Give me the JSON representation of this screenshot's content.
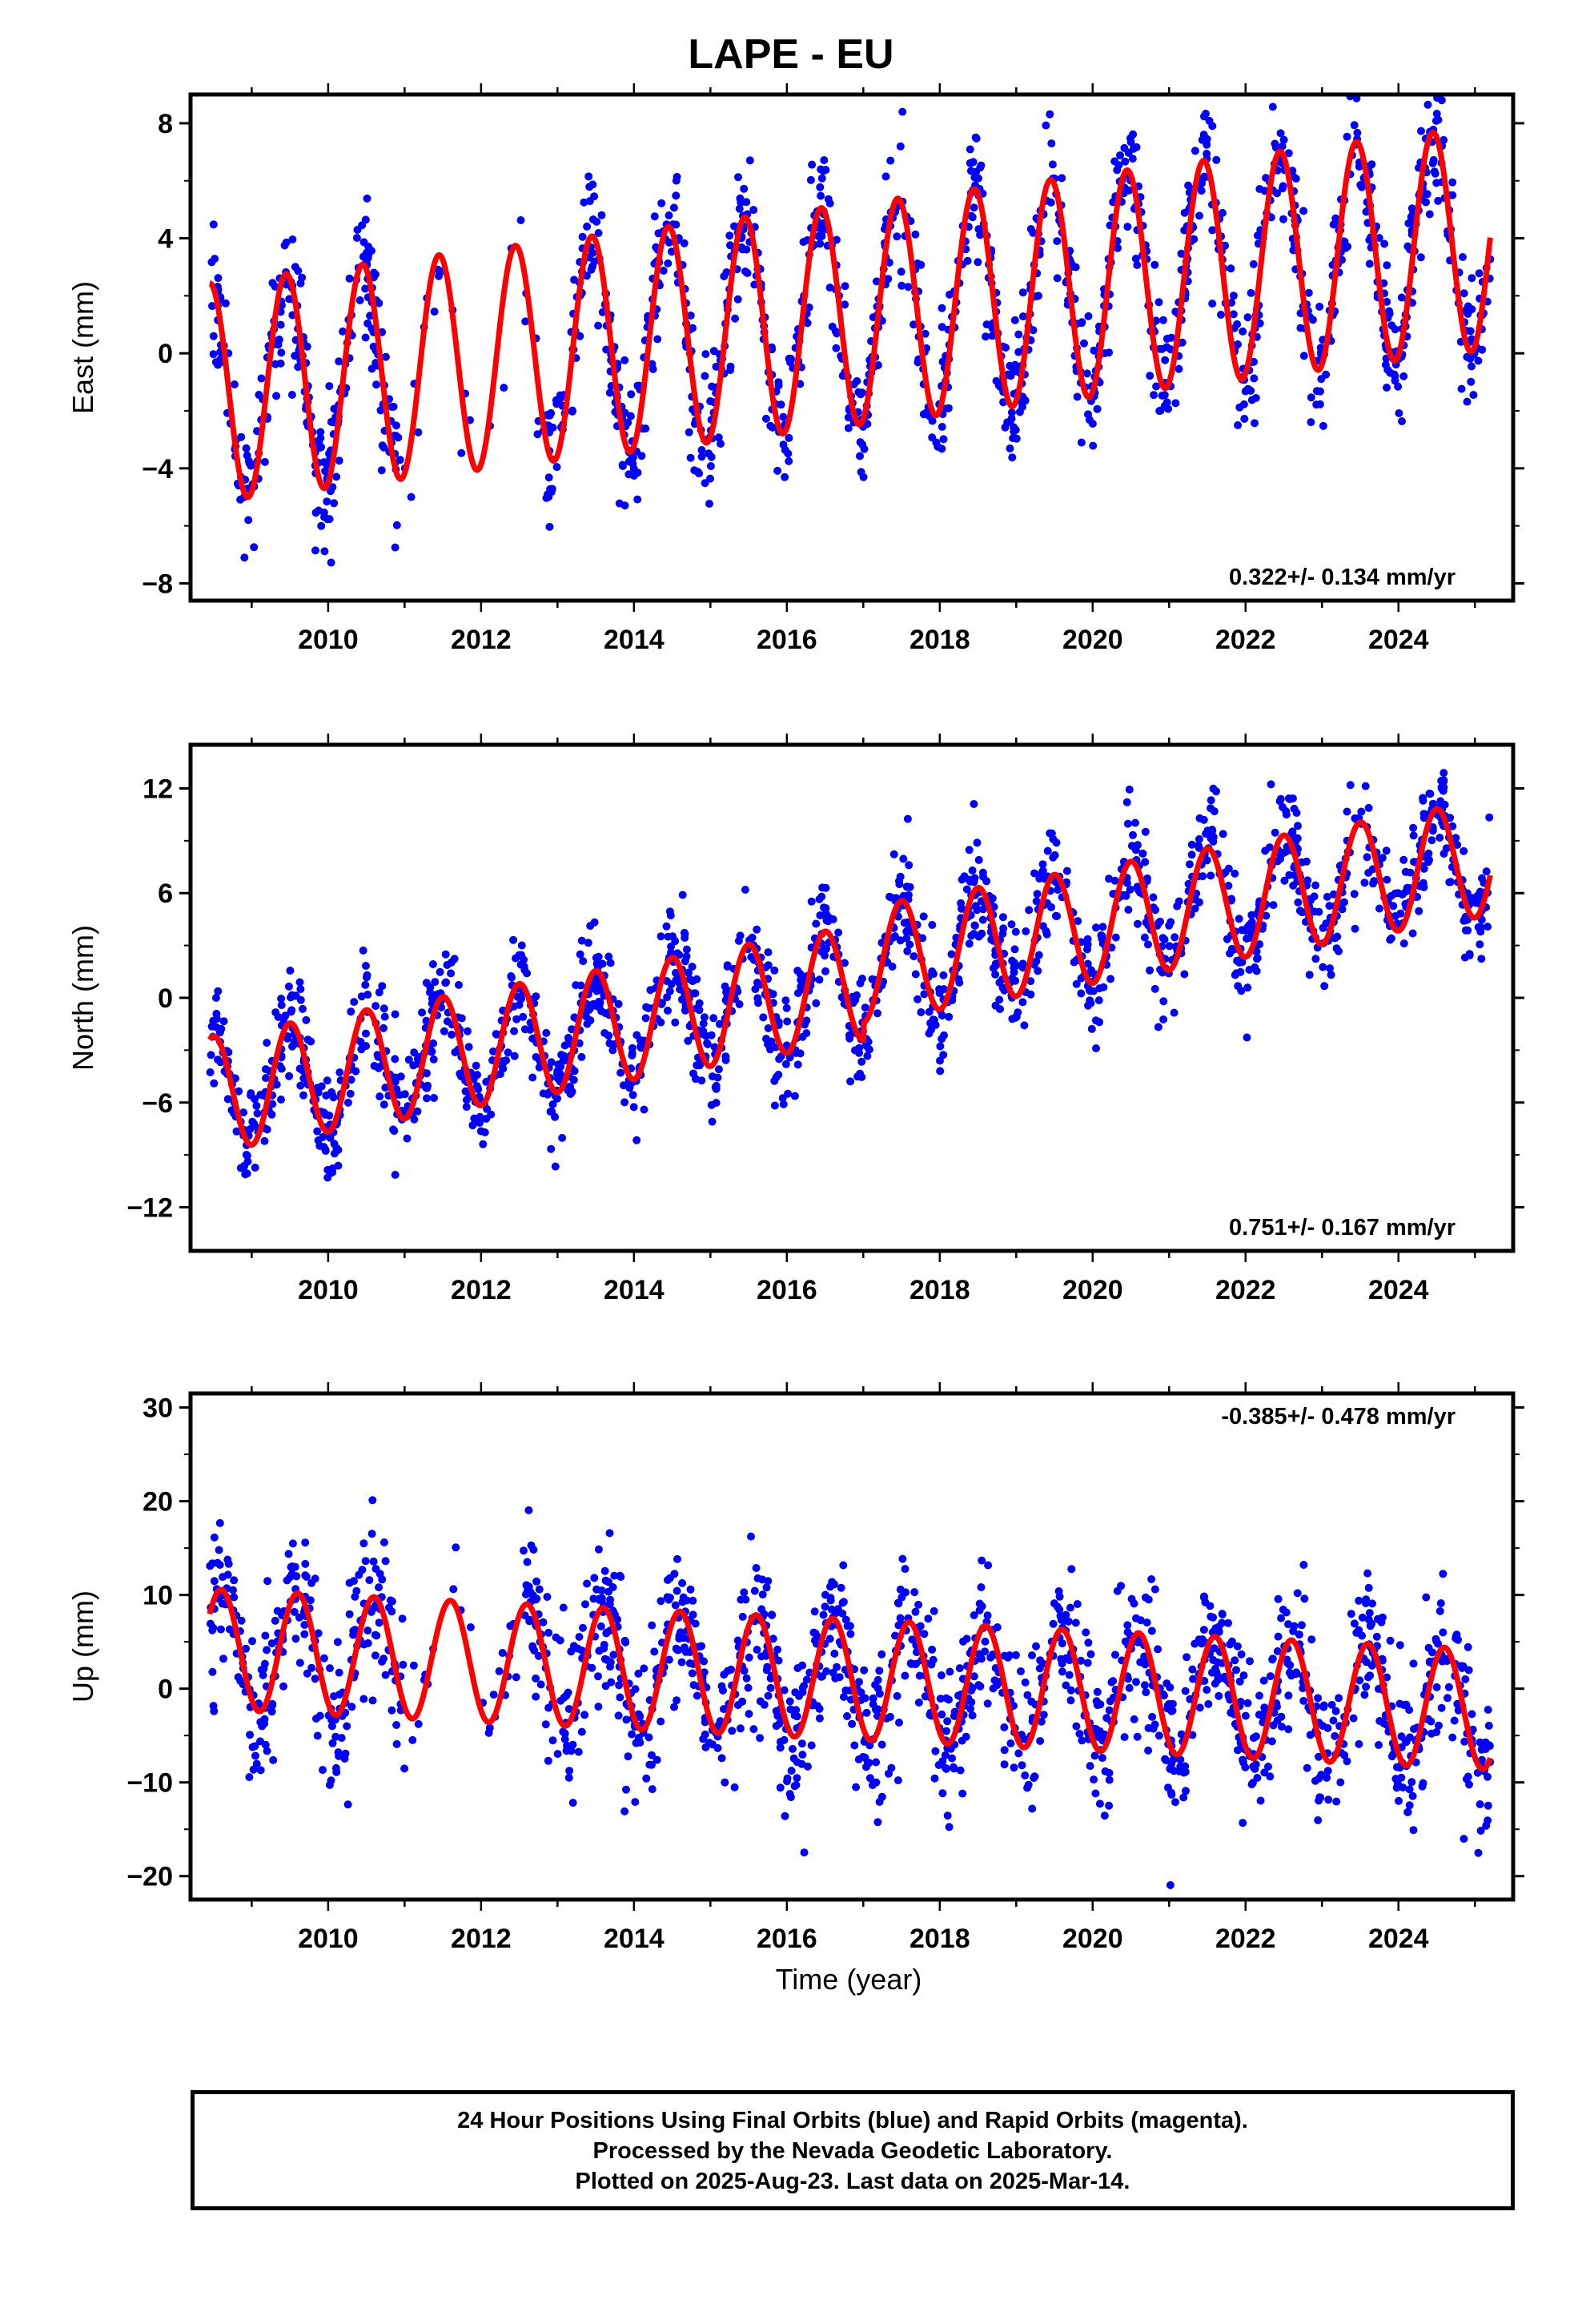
{
  "title": "LAPE - EU",
  "xlabel": "Time (year)",
  "colors": {
    "data": "#0000ff",
    "fit": "#ff0000",
    "frame": "#000000"
  },
  "footer": {
    "line1": "24 Hour Positions Using Final Orbits (blue) and Rapid Orbits (magenta).",
    "line2": "Processed by the Nevada Geodetic Laboratory.",
    "line3": "Plotted on 2025-Aug-23. Last data on 2025-Mar-14."
  },
  "chart_data": [
    {
      "type": "scatter",
      "id": "east",
      "ylabel": "East (mm)",
      "rate_text": "0.322+/- 0.134 mm/yr",
      "rate_position": "bottom-right",
      "xlim": [
        2008.2,
        2025.5
      ],
      "ylim": [
        -8.6,
        9.0
      ],
      "xticks": [
        2010,
        2012,
        2014,
        2016,
        2018,
        2020,
        2022,
        2024
      ],
      "yticks": [
        -8,
        -4,
        0,
        4,
        8
      ],
      "ytick_labels": [
        "−8",
        "−4",
        "0",
        "4",
        "8"
      ],
      "data_range": [
        2008.45,
        2025.2
      ],
      "fit": {
        "offset_2008_5": -1.35,
        "rate_mm_per_yr": 0.322,
        "annual_amplitude_start": 3.8,
        "annual_amplitude_end": 3.9,
        "annual_peak_fraction": 0.45,
        "gaps": [
          [
            2010.95,
            2012.85
          ]
        ]
      },
      "series": [
        {
          "values_sampled": [
            [
              2008.5,
              1.0
            ],
            [
              2008.9,
              -6.3
            ],
            [
              2009.4,
              1.2
            ],
            [
              2009.9,
              -6.0
            ],
            [
              2010.4,
              1.6
            ],
            [
              2011.4,
              1.9
            ],
            [
              2012.4,
              2.2
            ],
            [
              2013.4,
              2.5
            ],
            [
              2014.4,
              2.8
            ],
            [
              2015.4,
              3.2
            ],
            [
              2016.4,
              3.5
            ],
            [
              2017.4,
              3.8
            ],
            [
              2018.4,
              4.1
            ],
            [
              2019.4,
              4.4
            ],
            [
              2020.4,
              4.8
            ],
            [
              2021.4,
              5.1
            ],
            [
              2022.4,
              5.4
            ],
            [
              2023.4,
              5.7
            ],
            [
              2024.4,
              6.0
            ],
            [
              2025.2,
              3.3
            ]
          ]
        }
      ]
    },
    {
      "type": "scatter",
      "id": "north",
      "ylabel": "North (mm)",
      "rate_text": "0.751+/- 0.167 mm/yr",
      "rate_position": "bottom-right",
      "xlim": [
        2008.2,
        2025.5
      ],
      "ylim": [
        -14.5,
        14.5
      ],
      "xticks": [
        2010,
        2012,
        2014,
        2016,
        2018,
        2020,
        2022,
        2024
      ],
      "yticks": [
        -12,
        -6,
        0,
        6,
        12
      ],
      "ytick_labels": [
        "−12",
        "−6",
        "0",
        "6",
        "12"
      ],
      "data_range": [
        2008.45,
        2025.2
      ],
      "fit": {
        "offset_2008_5": -5.5,
        "rate_mm_per_yr": 0.751,
        "annual_amplitude": 3.3,
        "annual_peak_fraction": 0.5,
        "step_2017": 1.0
      },
      "series": [
        {
          "values_sampled": [
            [
              2008.5,
              -3.0
            ],
            [
              2009.0,
              -8.5
            ],
            [
              2009.5,
              -2.2
            ],
            [
              2010.0,
              -7.8
            ],
            [
              2011.5,
              -1.0
            ],
            [
              2012.5,
              -0.1
            ],
            [
              2013.5,
              0.8
            ],
            [
              2014.5,
              1.5
            ],
            [
              2015.5,
              2.2
            ],
            [
              2016.5,
              2.9
            ],
            [
              2017.5,
              3.8
            ],
            [
              2018.5,
              4.5
            ],
            [
              2019.5,
              5.3
            ],
            [
              2020.5,
              6.0
            ],
            [
              2021.5,
              6.8
            ],
            [
              2022.5,
              7.5
            ],
            [
              2023.5,
              8.2
            ],
            [
              2024.5,
              9.0
            ],
            [
              2025.2,
              5.0
            ]
          ]
        }
      ]
    },
    {
      "type": "scatter",
      "id": "up",
      "ylabel": "Up (mm)",
      "rate_text": "-0.385+/- 0.478 mm/yr",
      "rate_position": "top-right",
      "xlim": [
        2008.2,
        2025.5
      ],
      "ylim": [
        -22.5,
        31.5
      ],
      "xticks": [
        2010,
        2012,
        2014,
        2016,
        2018,
        2020,
        2022,
        2024
      ],
      "yticks": [
        -20,
        -10,
        0,
        10,
        20,
        30
      ],
      "ytick_labels": [
        "−20",
        "−10",
        "0",
        "10",
        "20",
        "30"
      ],
      "data_range": [
        2008.45,
        2025.2
      ],
      "fit": {
        "offset_2008_5": 4.2,
        "rate_mm_per_yr": -0.385,
        "annual_amplitude": 6.4,
        "annual_peak_fraction": 0.6,
        "gaps": [
          [
            2011.0,
            2012.55
          ]
        ]
      },
      "series": [
        {
          "values_sampled": [
            [
              2008.6,
              10.5
            ],
            [
              2009.1,
              -2.5
            ],
            [
              2009.6,
              10.0
            ],
            [
              2010.1,
              -2.8
            ],
            [
              2010.6,
              9.8
            ],
            [
              2011.6,
              9.3
            ],
            [
              2012.6,
              9.0
            ],
            [
              2013.6,
              8.5
            ],
            [
              2014.6,
              8.3
            ],
            [
              2015.6,
              7.8
            ],
            [
              2016.6,
              7.3
            ],
            [
              2017.6,
              7.0
            ],
            [
              2018.6,
              6.6
            ],
            [
              2019.6,
              6.3
            ],
            [
              2020.6,
              6.0
            ],
            [
              2021.6,
              5.6
            ],
            [
              2022.6,
              5.2
            ],
            [
              2023.6,
              4.8
            ],
            [
              2024.6,
              4.4
            ],
            [
              2025.2,
              -8.5
            ]
          ]
        }
      ]
    }
  ]
}
